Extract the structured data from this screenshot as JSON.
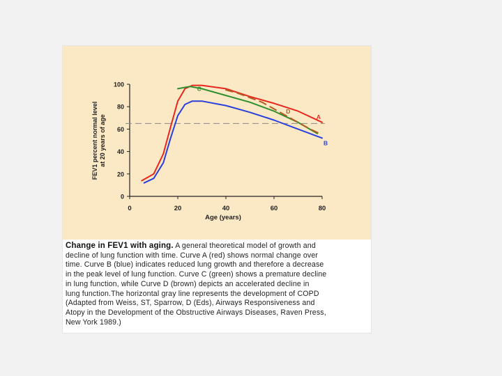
{
  "chart_data": {
    "type": "line",
    "title": "",
    "xlabel": "Age (years)",
    "ylabel_line1": "FEV1 percent normal level",
    "ylabel_line2": "at 20 years of age",
    "xlim": [
      0,
      80
    ],
    "ylim": [
      0,
      100
    ],
    "xticks": [
      "0",
      "20",
      "40",
      "60",
      "80"
    ],
    "yticks": [
      "0",
      "20",
      "40",
      "60",
      "80",
      "100"
    ],
    "grid": false,
    "reference_line": {
      "y": 65,
      "style": "dashed",
      "color": "#888888"
    },
    "series": [
      {
        "name": "A",
        "color": "#e8261e",
        "x": [
          5,
          10,
          14,
          17,
          20,
          23,
          26,
          30,
          40,
          50,
          60,
          70,
          80
        ],
        "y": [
          14,
          20,
          38,
          62,
          85,
          96,
          99,
          99,
          96,
          89,
          83,
          76,
          66
        ]
      },
      {
        "name": "B",
        "color": "#2a3fdc",
        "x": [
          6,
          10,
          14,
          17,
          20,
          23,
          26,
          30,
          40,
          50,
          60,
          70,
          80
        ],
        "y": [
          12,
          16,
          30,
          52,
          72,
          82,
          85,
          85,
          81,
          75,
          68,
          60,
          52
        ]
      },
      {
        "name": "C",
        "color": "#2e8f2e",
        "x": [
          20,
          25,
          30,
          40,
          50,
          60,
          70,
          78
        ],
        "y": [
          96,
          98,
          96,
          90,
          84,
          76,
          66,
          56
        ]
      },
      {
        "name": "D",
        "color": "#b25c22",
        "x": [
          40,
          45,
          50,
          55,
          60,
          65,
          70,
          75,
          80
        ],
        "y": [
          95,
          92,
          88,
          84,
          78,
          72,
          66,
          60,
          55
        ]
      }
    ],
    "curve_labels": [
      "A",
      "B",
      "C",
      "D"
    ]
  },
  "caption": {
    "bold": "Change in FEV1 with aging.",
    "lines": [
      " A general theoretical model of growth and",
      "decline of lung function with time. Curve A (red) shows normal change over",
      "time. Curve B (blue) indicates reduced lung growth and therefore a decrease",
      "in the peak level of lung function. Curve C (green) shows a premature decline",
      "in lung function, while Curve D (brown) depicts an accelerated decline in",
      "lung function.The horizontal gray line represents the development of COPD",
      "(Adapted from Weiss, ST, Sparrow, D (Eds), Airways Responsiveness and",
      "Atopy in the Development of the Obstructive Airways Diseases, Raven Press,",
      "New York 1989.)"
    ]
  }
}
